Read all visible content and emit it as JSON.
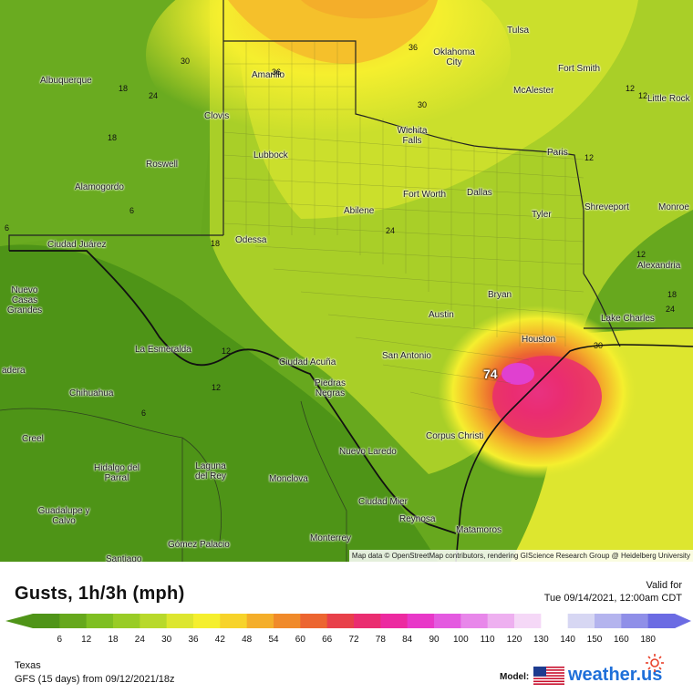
{
  "title": "Gusts, 1h/3h (mph)",
  "valid_label": "Valid for",
  "valid_date": "Tue 09/14/2021, 12:00am CDT",
  "region": "Texas",
  "model_run": "GFS (15 days) from 09/12/2021/18z",
  "model_label": "Model:",
  "brand": "weather.us",
  "attribution": "Map data © OpenStreetMap contributors, rendering GIScience Research Group @ Heidelberg University",
  "max_value": "74",
  "colorbar": {
    "ticks": [
      "6",
      "12",
      "18",
      "24",
      "30",
      "36",
      "42",
      "48",
      "54",
      "60",
      "66",
      "72",
      "78",
      "84",
      "90",
      "100",
      "110",
      "120",
      "130",
      "140",
      "150",
      "160",
      "180"
    ],
    "colors": [
      "#4f9418",
      "#66a81c",
      "#7fbf22",
      "#99cc26",
      "#b8d92b",
      "#dde62f",
      "#f5ef2e",
      "#f7d32a",
      "#f4ae2a",
      "#f08a2a",
      "#ec6530",
      "#e8404a",
      "#ea2d70",
      "#ec2aa0",
      "#e838c8",
      "#e45ae0",
      "#e887ea",
      "#eeb0f0",
      "#f5d8f7",
      "#ffffff",
      "#d7d7f3",
      "#b4b4ee",
      "#8f8fe8",
      "#6b6be3"
    ]
  },
  "cities": [
    {
      "name": "Albuquerque"
    },
    {
      "name": "Amarillo"
    },
    {
      "name": "Oklahoma City"
    },
    {
      "name": "Tulsa"
    },
    {
      "name": "Fort Smith"
    },
    {
      "name": "McAlester"
    },
    {
      "name": "Little Rock"
    },
    {
      "name": "Clovis"
    },
    {
      "name": "Roswell"
    },
    {
      "name": "Lubbock"
    },
    {
      "name": "Wichita Falls"
    },
    {
      "name": "Paris"
    },
    {
      "name": "Alamogordo"
    },
    {
      "name": "Fort Worth"
    },
    {
      "name": "Dallas"
    },
    {
      "name": "Shreveport"
    },
    {
      "name": "Monroe"
    },
    {
      "name": "Abilene"
    },
    {
      "name": "Tyler"
    },
    {
      "name": "Ciudad Juárez"
    },
    {
      "name": "Odessa"
    },
    {
      "name": "Alexandria"
    },
    {
      "name": "Nuevo Casas Grandes"
    },
    {
      "name": "Bryan"
    },
    {
      "name": "Austin"
    },
    {
      "name": "Lake Charles"
    },
    {
      "name": "La Esmeralda"
    },
    {
      "name": "Houston"
    },
    {
      "name": "San Antonio"
    },
    {
      "name": "Ciudad Acuña"
    },
    {
      "name": "Piedras Negras"
    },
    {
      "name": "Chihuahua"
    },
    {
      "name": "Corpus Christi"
    },
    {
      "name": "Creel"
    },
    {
      "name": "Nuevo Laredo"
    },
    {
      "name": "Hidalgo del Parral"
    },
    {
      "name": "Laguna del Rey"
    },
    {
      "name": "Monclova"
    },
    {
      "name": "Ciudad Mier"
    },
    {
      "name": "Guadalupe y Calvo"
    },
    {
      "name": "Reynosa"
    },
    {
      "name": "Matamoros"
    },
    {
      "name": "Monterrey"
    },
    {
      "name": "Gómez Palacio"
    },
    {
      "name": "Santiago"
    },
    {
      "name": "adera"
    }
  ],
  "contour_labels": [
    "30",
    "36",
    "36",
    "18",
    "24",
    "30",
    "18",
    "12",
    "6",
    "18",
    "24",
    "12",
    "12",
    "6",
    "30",
    "12",
    "18",
    "24",
    "12",
    "6",
    "12"
  ]
}
